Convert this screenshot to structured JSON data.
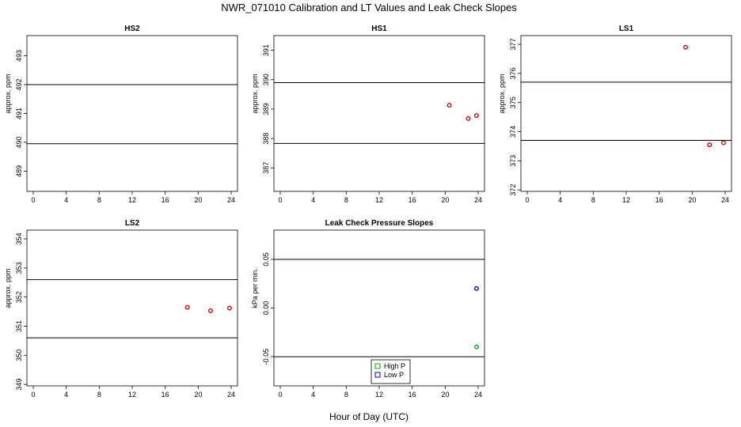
{
  "figure": {
    "title": "NWR_071010  Calibration and LT Values and Leak Check Slopes",
    "xlabel": "Hour of Day (UTC)"
  },
  "chart_data": [
    {
      "type": "scatter",
      "title": "HS2",
      "ylabel": "approx. ppm",
      "xlim": [
        0,
        24
      ],
      "ylim": [
        488.3,
        493.7
      ],
      "xticks": [
        0,
        4,
        8,
        12,
        16,
        20,
        24
      ],
      "yticks": [
        489,
        490,
        491,
        492,
        493
      ],
      "hlines": [
        489.95,
        492.0
      ],
      "series": [
        {
          "color": "#e00000",
          "x": [],
          "y": []
        }
      ]
    },
    {
      "type": "scatter",
      "title": "HS1",
      "ylabel": "approx. ppm",
      "xlim": [
        0,
        24
      ],
      "ylim": [
        386.2,
        391.5
      ],
      "xticks": [
        0,
        4,
        8,
        12,
        16,
        20,
        24
      ],
      "yticks": [
        387,
        388,
        389,
        390,
        391
      ],
      "hlines": [
        387.83,
        389.9
      ],
      "series": [
        {
          "color": "#e00000",
          "x": [
            20.5,
            22.8,
            23.8
          ],
          "y": [
            389.13,
            388.68,
            388.78
          ]
        }
      ]
    },
    {
      "type": "scatter",
      "title": "LS1",
      "ylabel": "approx. ppm",
      "xlim": [
        0,
        24
      ],
      "ylim": [
        371.95,
        377.3
      ],
      "xticks": [
        0,
        4,
        8,
        12,
        16,
        20,
        24
      ],
      "yticks": [
        372,
        373,
        374,
        375,
        376,
        377
      ],
      "hlines": [
        373.7,
        375.7
      ],
      "series": [
        {
          "color": "#e00000",
          "x": [
            19.2,
            22.1,
            23.8
          ],
          "y": [
            376.9,
            373.55,
            373.62
          ]
        }
      ]
    },
    {
      "type": "scatter",
      "title": "LS2",
      "ylabel": "approx. ppm",
      "xlim": [
        0,
        24
      ],
      "ylim": [
        348.95,
        354.3
      ],
      "xticks": [
        0,
        4,
        8,
        12,
        16,
        20,
        24
      ],
      "yticks": [
        349,
        350,
        351,
        352,
        353,
        354
      ],
      "hlines": [
        350.6,
        352.6
      ],
      "series": [
        {
          "color": "#e00000",
          "x": [
            18.7,
            21.5,
            23.8
          ],
          "y": [
            351.65,
            351.53,
            351.62
          ]
        }
      ]
    },
    {
      "type": "scatter",
      "title": "Leak Check Pressure Slopes",
      "ylabel": "kPa per min.",
      "xlim": [
        0,
        24
      ],
      "ylim": [
        -0.08,
        0.08
      ],
      "xticks": [
        0,
        4,
        8,
        12,
        16,
        20,
        24
      ],
      "yticks": [
        -0.05,
        0.0,
        0.05
      ],
      "ytick_labels": [
        "-0.05",
        "0.00",
        "0.05"
      ],
      "hlines": [
        -0.05,
        0.05
      ],
      "series": [
        {
          "name": "High P",
          "color": "#00b000",
          "x": [
            23.8
          ],
          "y": [
            -0.04
          ]
        },
        {
          "name": "Low P",
          "color": "#0000d0",
          "x": [
            23.8
          ],
          "y": [
            0.02
          ]
        }
      ],
      "legend": "bottom-right"
    }
  ]
}
